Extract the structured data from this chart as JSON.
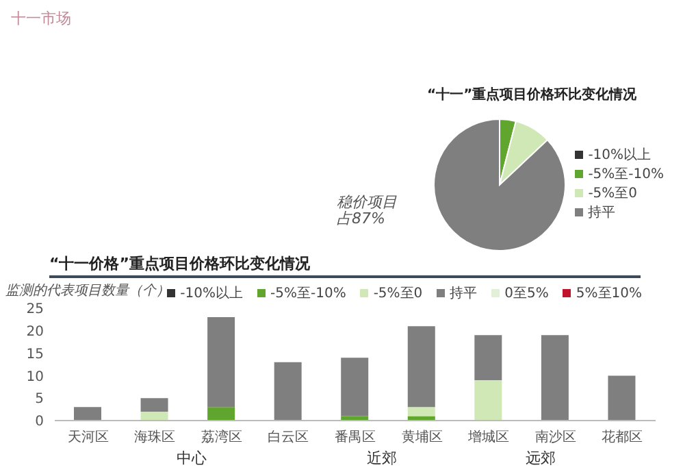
{
  "chart_data": [
    {
      "type": "pie",
      "title": "“十一”重点项目价格环比变化情况",
      "categories": [
        "-10%以上",
        "-5%至-10%",
        "-5%至0",
        "持平"
      ],
      "values": [
        0,
        4,
        9,
        87
      ],
      "colors": [
        "#333333",
        "#5fa52e",
        "#cfe8b6",
        "#7f7f7f"
      ],
      "legend": "right",
      "annotations": [
        "十一市场",
        "稳价项目占87%"
      ]
    },
    {
      "type": "bar",
      "title": "“十一价格”重点项目价格环比变化情况",
      "ylabel": "监测的代表项目数量（个）",
      "categories": [
        "天河区",
        "海珠区",
        "荔湾区",
        "白云区",
        "番禺区",
        "黄埔区",
        "增城区",
        "南沙区",
        "花都区"
      ],
      "stacked": true,
      "legend": "top right",
      "ylim": [
        0,
        25
      ],
      "yticks": [
        0,
        5,
        10,
        15,
        20,
        25
      ],
      "annotations": [
        "中心",
        "近郊",
        "远郊"
      ],
      "series": [
        {
          "name": "-10%以上",
          "color": "#333333",
          "values": [
            0,
            0,
            0,
            0,
            0,
            0,
            0,
            0,
            0
          ]
        },
        {
          "name": "-5%至-10%",
          "color": "#5fa52e",
          "values": [
            0,
            0,
            3,
            0,
            1,
            1,
            0,
            0,
            0
          ]
        },
        {
          "name": "-5%至0",
          "color": "#cfe8b6",
          "values": [
            0,
            2,
            0,
            0,
            0,
            2,
            9,
            0,
            0
          ]
        },
        {
          "name": "持平",
          "color": "#7f7f7f",
          "values": [
            3,
            3,
            20,
            13,
            13,
            18,
            10,
            19,
            10
          ]
        },
        {
          "name": "0至5%",
          "color": "#e3f0d8",
          "values": [
            0,
            0,
            0,
            0,
            0,
            0,
            0,
            0,
            0
          ]
        },
        {
          "name": "5%至10%",
          "color": "#c0142c",
          "values": [
            0,
            0,
            0,
            0,
            0,
            0,
            0,
            0,
            0
          ]
        }
      ]
    }
  ]
}
